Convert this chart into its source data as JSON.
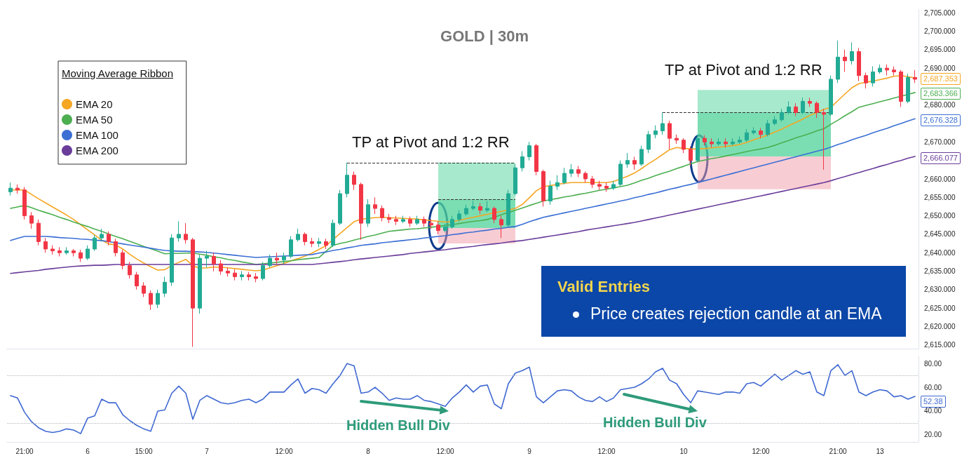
{
  "chart_data": [
    {
      "type": "candlestick",
      "title": "GOLD | 30m",
      "categories": [
        null,
        null,
        null,
        null,
        null,
        null,
        null,
        null,
        null,
        null,
        null,
        null,
        null,
        null,
        null,
        null,
        null,
        null,
        null,
        null,
        null,
        null,
        null,
        null,
        null,
        null,
        null,
        null,
        null,
        null,
        null,
        null,
        null,
        null,
        null,
        null,
        null,
        null,
        null,
        null,
        null,
        null,
        null,
        null,
        null,
        null,
        null,
        null,
        null,
        null,
        null,
        null,
        null,
        null,
        null,
        null,
        null,
        null,
        null,
        null,
        null,
        null,
        null,
        null,
        null,
        null,
        null,
        null,
        null,
        null,
        null,
        null,
        null,
        null,
        null,
        null,
        null,
        null,
        null,
        null,
        null,
        null,
        null,
        null,
        null,
        null,
        null,
        null,
        null,
        null,
        null,
        null,
        null,
        null,
        null,
        null,
        null,
        null,
        null,
        null,
        null,
        null,
        null,
        null,
        null,
        null,
        null,
        null,
        null,
        null,
        null,
        null,
        null,
        null,
        null,
        null,
        null,
        null,
        null,
        null,
        null,
        null,
        null,
        null,
        null,
        null,
        null,
        null,
        null,
        null
      ],
      "ohlc": [
        [
          2656.5,
          2659,
          2655.5,
          2657.5
        ],
        [
          2657.5,
          2658.5,
          2656,
          2657
        ],
        [
          2657,
          2657.8,
          2649,
          2650
        ],
        [
          2650,
          2651,
          2646.5,
          2648
        ],
        [
          2648,
          2649,
          2642,
          2643
        ],
        [
          2643,
          2644,
          2640,
          2641
        ],
        [
          2641,
          2642,
          2639.5,
          2640.5
        ],
        [
          2640.5,
          2641.5,
          2639,
          2640
        ],
        [
          2640,
          2641.5,
          2639.5,
          2640.5
        ],
        [
          2640.5,
          2641,
          2639,
          2640
        ],
        [
          2640,
          2640.8,
          2637.5,
          2638.5
        ],
        [
          2638.5,
          2642,
          2638,
          2641
        ],
        [
          2641,
          2644.8,
          2640.5,
          2644
        ],
        [
          2644,
          2646.5,
          2643,
          2645
        ],
        [
          2645,
          2645.8,
          2642,
          2643
        ],
        [
          2643,
          2643.8,
          2639,
          2640
        ],
        [
          2640,
          2640.8,
          2635.5,
          2636.5
        ],
        [
          2636.5,
          2637.5,
          2633,
          2634
        ],
        [
          2634,
          2634.8,
          2630,
          2631
        ],
        [
          2631,
          2632,
          2628,
          2629
        ],
        [
          2629,
          2629.8,
          2624.5,
          2626
        ],
        [
          2626,
          2630,
          2625,
          2629
        ],
        [
          2629,
          2633.5,
          2628,
          2632
        ],
        [
          2632,
          2645,
          2631,
          2644
        ],
        [
          2644,
          2648.5,
          2643,
          2645
        ],
        [
          2645,
          2648,
          2642.5,
          2643.5
        ],
        [
          2643.5,
          2644,
          2614.5,
          2625
        ],
        [
          2625,
          2639.5,
          2623.5,
          2638.5
        ],
        [
          2638.5,
          2640.5,
          2636,
          2639
        ],
        [
          2639,
          2640,
          2635,
          2637
        ],
        [
          2637,
          2638,
          2634,
          2635
        ],
        [
          2635,
          2636,
          2633.5,
          2634.5
        ],
        [
          2634.5,
          2635.5,
          2632.5,
          2633.5
        ],
        [
          2633.5,
          2635,
          2632.5,
          2634
        ],
        [
          2634,
          2634.8,
          2632.5,
          2633.5
        ],
        [
          2633.5,
          2634.5,
          2632,
          2633
        ],
        [
          2633,
          2637.5,
          2632.5,
          2636.5
        ],
        [
          2636.5,
          2639.5,
          2636,
          2638.5
        ],
        [
          2638.5,
          2640,
          2637,
          2638
        ],
        [
          2638,
          2640,
          2637,
          2639
        ],
        [
          2639,
          2644.5,
          2638.5,
          2643.5
        ],
        [
          2643.5,
          2646.5,
          2643,
          2645
        ],
        [
          2645,
          2645.5,
          2642,
          2643
        ],
        [
          2643,
          2644,
          2641.5,
          2642.5
        ],
        [
          2642.5,
          2644,
          2641.5,
          2643
        ],
        [
          2643,
          2643.8,
          2641,
          2642
        ],
        [
          2642,
          2649,
          2641.5,
          2648
        ],
        [
          2648,
          2657,
          2647.5,
          2656
        ],
        [
          2656,
          2664.4,
          2655,
          2661
        ],
        [
          2661,
          2662,
          2657,
          2658.5
        ],
        [
          2658.5,
          2659,
          2643.5,
          2648
        ],
        [
          2648,
          2654.5,
          2647,
          2653
        ],
        [
          2653,
          2655,
          2650.5,
          2652
        ],
        [
          2652,
          2652.8,
          2648.5,
          2649.5
        ],
        [
          2649.5,
          2650.5,
          2648,
          2649
        ],
        [
          2649,
          2650,
          2647.5,
          2648.5
        ],
        [
          2648.5,
          2650,
          2648,
          2649
        ],
        [
          2649,
          2649.8,
          2647,
          2648
        ],
        [
          2648,
          2650,
          2647.5,
          2649
        ],
        [
          2649,
          2649.8,
          2647,
          2648
        ],
        [
          2648,
          2649,
          2646.5,
          2647.5
        ],
        [
          2647.5,
          2648.5,
          2645,
          2646
        ],
        [
          2646,
          2647.8,
          2645.5,
          2647
        ],
        [
          2647,
          2650,
          2646.5,
          2649
        ],
        [
          2649,
          2651.5,
          2648.5,
          2650.5
        ],
        [
          2650.5,
          2653,
          2650,
          2652
        ],
        [
          2652,
          2654,
          2651.5,
          2652.5
        ],
        [
          2652.5,
          2653.5,
          2650.5,
          2651.5
        ],
        [
          2651.5,
          2654,
          2651,
          2652
        ],
        [
          2652,
          2652.5,
          2648,
          2649
        ],
        [
          2649,
          2650,
          2644,
          2647.5
        ],
        [
          2647.5,
          2657,
          2647,
          2656
        ],
        [
          2656,
          2664,
          2655.5,
          2663
        ],
        [
          2663,
          2667.5,
          2662,
          2666
        ],
        [
          2666,
          2670,
          2665,
          2669
        ],
        [
          2669,
          2669.5,
          2661,
          2662
        ],
        [
          2662,
          2662.5,
          2652.5,
          2654
        ],
        [
          2654,
          2659.5,
          2653,
          2658
        ],
        [
          2658,
          2661,
          2657,
          2659
        ],
        [
          2659,
          2663,
          2658.5,
          2661.5
        ],
        [
          2661.5,
          2664,
          2660.5,
          2662.5
        ],
        [
          2662.5,
          2663.5,
          2660.5,
          2661.5
        ],
        [
          2661.5,
          2662,
          2659,
          2660
        ],
        [
          2660,
          2660.8,
          2657.5,
          2658.5
        ],
        [
          2658.5,
          2659.5,
          2657,
          2658
        ],
        [
          2658,
          2659,
          2656.5,
          2657.5
        ],
        [
          2657.5,
          2659.5,
          2657,
          2658.5
        ],
        [
          2658.5,
          2665,
          2658,
          2664
        ],
        [
          2664,
          2667,
          2663,
          2665
        ],
        [
          2665,
          2666,
          2662.5,
          2664
        ],
        [
          2664,
          2669,
          2663.5,
          2668
        ],
        [
          2668,
          2673,
          2667,
          2672
        ],
        [
          2672,
          2674.5,
          2671,
          2673
        ],
        [
          2673,
          2678,
          2672,
          2675
        ],
        [
          2675,
          2675.8,
          2668,
          2671
        ],
        [
          2671,
          2672,
          2669.5,
          2670.5
        ],
        [
          2670.5,
          2671,
          2667,
          2668
        ],
        [
          2668,
          2668.8,
          2663.5,
          2665
        ],
        [
          2665,
          2672,
          2664.5,
          2671
        ],
        [
          2671,
          2671.8,
          2669,
          2670
        ],
        [
          2670,
          2671,
          2668.5,
          2669.5
        ],
        [
          2669.5,
          2671,
          2669,
          2670
        ],
        [
          2670,
          2671,
          2668.5,
          2669.5
        ],
        [
          2669.5,
          2671,
          2669,
          2670
        ],
        [
          2670,
          2671.5,
          2669.5,
          2670.5
        ],
        [
          2670.5,
          2673.5,
          2670,
          2672.5
        ],
        [
          2672.5,
          2674,
          2672,
          2673
        ],
        [
          2673,
          2673.8,
          2671,
          2672
        ],
        [
          2672,
          2676,
          2671.5,
          2675
        ],
        [
          2675,
          2677,
          2674.5,
          2676
        ],
        [
          2676,
          2679,
          2675.5,
          2678
        ],
        [
          2678,
          2681,
          2677.5,
          2679.5
        ],
        [
          2679.5,
          2680.5,
          2677,
          2678
        ],
        [
          2678,
          2682,
          2677.5,
          2681
        ],
        [
          2681,
          2682,
          2679.5,
          2680.5
        ],
        [
          2680.5,
          2681,
          2676.5,
          2678
        ],
        [
          2678,
          2679,
          2662.5,
          2677.5
        ],
        [
          2677.5,
          2688,
          2677,
          2687
        ],
        [
          2687,
          2697.5,
          2686,
          2693
        ],
        [
          2693,
          2695,
          2689,
          2692
        ],
        [
          2692,
          2697,
          2691,
          2694.5
        ],
        [
          2694.5,
          2695.5,
          2686.5,
          2688
        ],
        [
          2688,
          2688.8,
          2684.5,
          2686
        ],
        [
          2686,
          2690.5,
          2685,
          2689
        ],
        [
          2689,
          2691,
          2688.5,
          2690
        ],
        [
          2690,
          2691,
          2688,
          2689.5
        ],
        [
          2689.5,
          2690.5,
          2688,
          2689
        ],
        [
          2689,
          2689.5,
          2679.5,
          2681
        ],
        [
          2681,
          2688.5,
          2680.5,
          2687.5
        ],
        [
          2687.5,
          2689.5,
          2686,
          2687
        ]
      ],
      "colors": [
        "#22ab94",
        "#f23645",
        "#f23645",
        "#f23645",
        "#f23645",
        "#f23645",
        "#f23645",
        "#f23645",
        "#22ab94",
        "#f23645",
        "#f23645",
        "#22ab94",
        "#22ab94",
        "#22ab94",
        "#f23645",
        "#f23645",
        "#f23645",
        "#f23645",
        "#f23645",
        "#f23645",
        "#f23645",
        "#22ab94",
        "#22ab94",
        "#22ab94",
        "#22ab94",
        "#f23645",
        "#f23645",
        "#22ab94",
        "#22ab94",
        "#f23645",
        "#f23645",
        "#f23645",
        "#f23645",
        "#22ab94",
        "#f23645",
        "#f23645",
        "#22ab94",
        "#22ab94",
        "#f23645",
        "#22ab94",
        "#22ab94",
        "#22ab94",
        "#f23645",
        "#f23645",
        "#22ab94",
        "#f23645",
        "#22ab94",
        "#22ab94",
        "#22ab94",
        "#f23645",
        "#f23645",
        "#22ab94",
        "#f23645",
        "#f23645",
        "#f23645",
        "#f23645",
        "#22ab94",
        "#f23645",
        "#22ab94",
        "#f23645",
        "#f23645",
        "#f23645",
        "#22ab94",
        "#22ab94",
        "#22ab94",
        "#22ab94",
        "#22ab94",
        "#f23645",
        "#22ab94",
        "#f23645",
        "#f23645",
        "#22ab94",
        "#22ab94",
        "#22ab94",
        "#22ab94",
        "#f23645",
        "#f23645",
        "#22ab94",
        "#22ab94",
        "#22ab94",
        "#22ab94",
        "#f23645",
        "#f23645",
        "#f23645",
        "#f23645",
        "#f23645",
        "#22ab94",
        "#22ab94",
        "#22ab94",
        "#f23645",
        "#22ab94",
        "#22ab94",
        "#22ab94",
        "#22ab94",
        "#f23645",
        "#f23645",
        "#f23645",
        "#f23645",
        "#22ab94",
        "#f23645",
        "#f23645",
        "#22ab94",
        "#f23645",
        "#22ab94",
        "#22ab94",
        "#22ab94",
        "#22ab94",
        "#f23645",
        "#22ab94",
        "#22ab94",
        "#22ab94",
        "#22ab94",
        "#f23645",
        "#22ab94",
        "#f23645",
        "#f23645",
        "#f23645",
        "#22ab94",
        "#22ab94",
        "#f23645",
        "#22ab94",
        "#f23645",
        "#f23645",
        "#22ab94",
        "#22ab94",
        "#f23645",
        "#f23645",
        "#f23645",
        "#22ab94",
        "#f23645"
      ],
      "series": [
        {
          "type": "line",
          "name": "EMA 20",
          "color": "#f5a623",
          "values": [
            2657.0,
            2657.0,
            2657.0,
            2655.8,
            2654.6,
            2653.5,
            2652.4,
            2651.3,
            2650.2,
            2649.0,
            2647.6,
            2646.2,
            2644.8,
            2643.4,
            2642.4,
            2642.1,
            2641.0,
            2639.6,
            2638.3,
            2637.2,
            2636.2,
            2635.3,
            2635.4,
            2636.5,
            2637.4,
            2638.2,
            2636.5,
            2635.8,
            2635.9,
            2636.1,
            2636.1,
            2635.9,
            2635.7,
            2635.5,
            2635.3,
            2635.1,
            2635.3,
            2635.9,
            2636.5,
            2637.1,
            2637.8,
            2638.4,
            2639.1,
            2639.9,
            2640.9,
            2641.9,
            2643.6,
            2645.2,
            2646.8,
            2648.4,
            2649.1,
            2649.3,
            2649.5,
            2649.6,
            2649.5,
            2649.4,
            2649.3,
            2649.2,
            2649.1,
            2648.9,
            2648.7,
            2648.5,
            2648.3,
            2648.4,
            2648.8,
            2649.2,
            2649.6,
            2650.0,
            2650.4,
            2650.8,
            2651.2,
            2651.6,
            2652.0,
            2653.1,
            2654.9,
            2656.8,
            2657.9,
            2658.2,
            2658.5,
            2658.8,
            2659.0,
            2659.0,
            2659.0,
            2659.0,
            2659.0,
            2659.0,
            2659.3,
            2660.0,
            2660.7,
            2661.6,
            2662.8,
            2664.1,
            2665.3,
            2666.6,
            2667.9,
            2668.5,
            2668.3,
            2668.1,
            2668.1,
            2668.2,
            2668.4,
            2668.6,
            2668.8,
            2669.0,
            2669.3,
            2669.9,
            2670.6,
            2671.2,
            2671.9,
            2672.7,
            2673.5,
            2674.4,
            2675.3,
            2676.2,
            2677.2,
            2678.0,
            2678.8,
            2679.4,
            2681.2,
            2683.0,
            2684.7,
            2685.8,
            2686.2,
            2686.5,
            2686.9,
            2687.3,
            2687.8,
            2688.0,
            2687.7,
            2687.3
          ]
        },
        {
          "type": "line",
          "name": "EMA 50",
          "color": "#4caf50",
          "values": [
            2652.0,
            2652.4,
            2652.8,
            2652.2,
            2651.5,
            2650.9,
            2650.3,
            2649.6,
            2649.0,
            2648.3,
            2647.7,
            2647.1,
            2646.4,
            2645.8,
            2645.1,
            2644.4,
            2643.8,
            2643.1,
            2642.4,
            2641.7,
            2641.1,
            2640.4,
            2639.7,
            2639.8,
            2639.8,
            2639.9,
            2639.9,
            2639.6,
            2639.3,
            2638.9,
            2638.6,
            2638.2,
            2637.9,
            2637.5,
            2637.2,
            2636.8,
            2637.0,
            2637.2,
            2637.4,
            2637.6,
            2637.8,
            2638.1,
            2638.3,
            2638.5,
            2638.7,
            2640.4,
            2642.0,
            2642.5,
            2642.9,
            2643.4,
            2643.9,
            2644.4,
            2644.8,
            2645.3,
            2645.8,
            2646.0,
            2646.2,
            2646.4,
            2646.5,
            2646.7,
            2646.9,
            2647.1,
            2647.4,
            2647.6,
            2647.9,
            2648.2,
            2648.5,
            2648.7,
            2649.0,
            2649.6,
            2650.3,
            2650.9,
            2651.5,
            2652.1,
            2652.8,
            2653.4,
            2654.0,
            2654.4,
            2654.7,
            2655.1,
            2655.4,
            2655.8,
            2656.1,
            2656.5,
            2656.9,
            2657.2,
            2657.6,
            2657.9,
            2658.3,
            2658.9,
            2659.6,
            2660.2,
            2660.9,
            2661.5,
            2662.1,
            2662.8,
            2663.4,
            2664.1,
            2664.7,
            2665.1,
            2665.5,
            2665.8,
            2666.2,
            2666.6,
            2667.0,
            2667.4,
            2667.8,
            2668.1,
            2668.5,
            2669.1,
            2669.8,
            2670.4,
            2671.1,
            2671.7,
            2672.3,
            2673.0,
            2673.6,
            2674.8,
            2675.9,
            2677.1,
            2678.2,
            2679.4,
            2679.9,
            2680.4,
            2680.9,
            2681.4,
            2681.9,
            2682.4,
            2682.9,
            2683.4
          ]
        },
        {
          "type": "line",
          "name": "EMA 100",
          "color": "#3b6fd4",
          "values": [
            2643.3,
            2643.9,
            2644.4,
            2644.4,
            2644.4,
            2644.4,
            2644.3,
            2644.1,
            2644.0,
            2643.9,
            2643.7,
            2643.6,
            2643.4,
            2643.3,
            2643.0,
            2642.7,
            2642.4,
            2642.1,
            2641.8,
            2641.5,
            2641.2,
            2640.9,
            2640.6,
            2640.5,
            2640.4,
            2640.4,
            2640.3,
            2640.2,
            2640.1,
            2639.9,
            2639.7,
            2639.5,
            2639.3,
            2639.1,
            2638.9,
            2638.7,
            2638.8,
            2638.9,
            2639.0,
            2639.1,
            2639.2,
            2639.3,
            2639.4,
            2639.5,
            2639.9,
            2640.2,
            2640.6,
            2640.9,
            2641.3,
            2641.6,
            2642.0,
            2642.2,
            2642.4,
            2642.7,
            2642.9,
            2643.1,
            2643.3,
            2643.5,
            2643.7,
            2644.0,
            2644.2,
            2644.4,
            2644.6,
            2644.9,
            2645.1,
            2645.4,
            2645.6,
            2645.9,
            2646.1,
            2646.4,
            2646.6,
            2646.9,
            2647.1,
            2647.7,
            2648.4,
            2649.0,
            2649.6,
            2650.0,
            2650.4,
            2650.8,
            2651.2,
            2651.6,
            2652.0,
            2652.4,
            2652.8,
            2653.2,
            2653.6,
            2654.0,
            2654.4,
            2654.9,
            2655.3,
            2655.8,
            2656.2,
            2656.7,
            2657.2,
            2657.6,
            2658.1,
            2658.5,
            2659.0,
            2659.5,
            2660.0,
            2660.5,
            2661.0,
            2661.5,
            2662.0,
            2662.5,
            2663.0,
            2663.5,
            2664.0,
            2664.5,
            2665.0,
            2665.5,
            2666.0,
            2666.5,
            2667.0,
            2667.5,
            2668.0,
            2668.6,
            2669.3,
            2669.9,
            2670.6,
            2671.2,
            2671.8,
            2672.5,
            2673.1,
            2673.7,
            2674.4,
            2675.0,
            2675.7,
            2676.3
          ]
        },
        {
          "type": "line",
          "name": "EMA 200",
          "color": "#6a3d9a",
          "values": [
            2634.4,
            2634.6,
            2634.8,
            2635.0,
            2635.2,
            2635.5,
            2635.7,
            2635.9,
            2636.1,
            2636.3,
            2636.4,
            2636.5,
            2636.6,
            2636.6,
            2636.7,
            2636.8,
            2636.8,
            2636.8,
            2636.8,
            2636.8,
            2636.8,
            2636.8,
            2636.8,
            2636.8,
            2636.8,
            2636.8,
            2636.8,
            2636.8,
            2636.8,
            2636.8,
            2636.8,
            2636.8,
            2636.8,
            2636.8,
            2636.8,
            2636.8,
            2636.8,
            2636.8,
            2636.8,
            2636.8,
            2636.8,
            2636.8,
            2636.8,
            2636.8,
            2637.0,
            2637.2,
            2637.4,
            2637.6,
            2637.8,
            2638.1,
            2638.3,
            2638.5,
            2638.7,
            2638.9,
            2639.1,
            2639.3,
            2639.5,
            2639.8,
            2640.0,
            2640.2,
            2640.4,
            2640.6,
            2640.8,
            2641.1,
            2641.3,
            2641.5,
            2641.7,
            2642.0,
            2642.2,
            2642.4,
            2642.6,
            2642.9,
            2643.1,
            2643.3,
            2643.6,
            2643.9,
            2644.2,
            2644.5,
            2644.8,
            2645.1,
            2645.4,
            2645.7,
            2646.1,
            2646.4,
            2646.7,
            2647.0,
            2647.3,
            2647.6,
            2647.9,
            2648.2,
            2648.6,
            2649.0,
            2649.4,
            2649.8,
            2650.2,
            2650.6,
            2651.0,
            2651.4,
            2651.8,
            2652.2,
            2652.6,
            2653.0,
            2653.4,
            2653.8,
            2654.2,
            2654.6,
            2655.0,
            2655.4,
            2655.8,
            2656.2,
            2656.6,
            2657.0,
            2657.4,
            2657.8,
            2658.2,
            2658.6,
            2659.0,
            2659.5,
            2660.1,
            2660.6,
            2661.2,
            2661.7,
            2662.3,
            2662.8,
            2663.4,
            2663.9,
            2664.5,
            2665.0,
            2665.6,
            2666.1
          ]
        }
      ],
      "ylim": [
        2614,
        2706
      ],
      "yticks": [
        {
          "value": 2615,
          "label": "2,615.000"
        },
        {
          "value": 2620,
          "label": "2,620.000"
        },
        {
          "value": 2625,
          "label": "2,625.000"
        },
        {
          "value": 2630,
          "label": "2,630.000"
        },
        {
          "value": 2635,
          "label": "2,635.000"
        },
        {
          "value": 2640,
          "label": "2,640.000"
        },
        {
          "value": 2645,
          "label": "2,645.000"
        },
        {
          "value": 2650,
          "label": "2,650.000"
        },
        {
          "value": 2655,
          "label": "2,655.000"
        },
        {
          "value": 2660,
          "label": "2,660.000"
        },
        {
          "value": 2670,
          "label": "2,670.000"
        },
        {
          "value": 2680,
          "label": "2,680.000"
        },
        {
          "value": 2690,
          "label": "2,690.000"
        },
        {
          "value": 2695,
          "label": "2,695.000"
        },
        {
          "value": 2700,
          "label": "2,700.000"
        },
        {
          "value": 2705,
          "label": "2,705.000"
        }
      ],
      "tick_labels": "y",
      "legend": "top left",
      "legend_title": "Moving Average Ribbon",
      "bands": [
        {
          "axis": "y",
          "from": 2646.7,
          "to": 2664.4,
          "color": "#4fd49a"
        },
        {
          "axis": "y",
          "from": 2646.7,
          "to": 2654.5,
          "color": "#4fd49a"
        },
        {
          "axis": "y",
          "from": 2642.5,
          "to": 2646.7,
          "color": "#f29aa8"
        },
        {
          "axis": "y",
          "from": 2666.1,
          "to": 2684.1,
          "color": "#4fd49a"
        },
        {
          "axis": "y",
          "from": 2666.1,
          "to": 2678,
          "color": "#4fd49a"
        },
        {
          "axis": "y",
          "from": 2657.2,
          "to": 2666.1,
          "color": "#f29aa8"
        }
      ],
      "ref_lines": [
        {
          "axis": "y",
          "value": 2664.4,
          "color": "#333333",
          "line_style": "dashed"
        },
        {
          "axis": "y",
          "value": 2654.5,
          "color": "#333333",
          "line_style": "dashed"
        },
        {
          "axis": "y",
          "value": 2678,
          "color": "#333333",
          "line_style": "dashed"
        }
      ],
      "annotations": [
        "TP at Pivot and 1:2 RR",
        "TP at Pivot and 1:2 RR",
        "Valid Entries",
        "Price creates rejection candle at an EMA",
        "2,687.353",
        "2,683.366",
        "2,676.328",
        "2,666.077"
      ]
    },
    {
      "type": "line",
      "categories": [
        null,
        null,
        "21:00",
        null,
        null,
        null,
        null,
        null,
        null,
        null,
        null,
        "6",
        null,
        null,
        null,
        null,
        null,
        null,
        null,
        "15:00",
        null,
        null,
        null,
        null,
        null,
        null,
        null,
        null,
        "7",
        null,
        null,
        null,
        null,
        null,
        null,
        null,
        null,
        null,
        null,
        "12:00",
        null,
        null,
        null,
        null,
        null,
        null,
        null,
        null,
        null,
        null,
        null,
        "8",
        null,
        null,
        null,
        null,
        null,
        null,
        null,
        null,
        null,
        null,
        "12:00",
        null,
        null,
        null,
        null,
        null,
        null,
        null,
        null,
        null,
        null,
        null,
        "9",
        null,
        null,
        null,
        null,
        null,
        null,
        null,
        null,
        null,
        null,
        "12:00",
        null,
        null,
        null,
        null,
        null,
        null,
        null,
        null,
        null,
        null,
        "10",
        null,
        null,
        null,
        null,
        null,
        null,
        null,
        null,
        null,
        null,
        "12:00",
        null,
        null,
        null,
        null,
        null,
        null,
        null,
        null,
        null,
        null,
        "21:00",
        null,
        null,
        null,
        null,
        null,
        "13",
        null,
        null,
        null,
        null,
        null
      ],
      "color": "#3f68d1",
      "values": [
        53,
        51,
        39,
        31,
        26,
        23,
        22,
        23,
        25,
        24,
        21,
        34,
        36,
        50,
        47,
        47,
        37,
        32,
        28,
        25,
        23,
        40,
        41,
        55,
        61,
        55,
        33,
        49,
        53,
        50,
        47,
        46,
        47,
        49,
        50,
        47,
        50,
        56,
        56,
        56,
        62,
        67,
        55,
        59,
        58,
        55,
        63,
        70,
        80,
        78,
        55,
        56,
        60,
        55,
        49,
        51,
        50,
        50,
        53,
        49,
        48,
        46,
        44,
        51,
        56,
        62,
        56,
        61,
        62,
        46,
        42,
        63,
        72,
        74,
        77,
        52,
        47,
        52,
        57,
        58,
        57,
        52,
        49,
        48,
        52,
        48,
        51,
        58,
        59,
        60,
        63,
        67,
        73,
        76,
        66,
        63,
        54,
        47,
        57,
        56,
        55,
        54,
        56,
        56,
        55,
        63,
        64,
        61,
        66,
        71,
        66,
        70,
        74,
        71,
        73,
        56,
        53,
        74,
        79,
        70,
        74,
        56,
        53,
        56,
        58,
        57,
        52,
        53,
        50,
        52.38
      ],
      "ylim": [
        14,
        86
      ],
      "yticks": [
        {
          "value": 20,
          "label": "20.00"
        },
        {
          "value": 40,
          "label": "40.00"
        },
        {
          "value": 60,
          "label": "60.00"
        },
        {
          "value": 80,
          "label": "80.00"
        }
      ],
      "ref_lines": [
        {
          "axis": "y",
          "value": 70,
          "color": "#b2b5be",
          "line_style": "dotted"
        },
        {
          "axis": "y",
          "value": 30,
          "color": "#b2b5be",
          "line_style": "dotted"
        }
      ],
      "annotations": [
        "Hidden Bull Div",
        "Hidden Bull Div",
        "52.38"
      ]
    }
  ]
}
